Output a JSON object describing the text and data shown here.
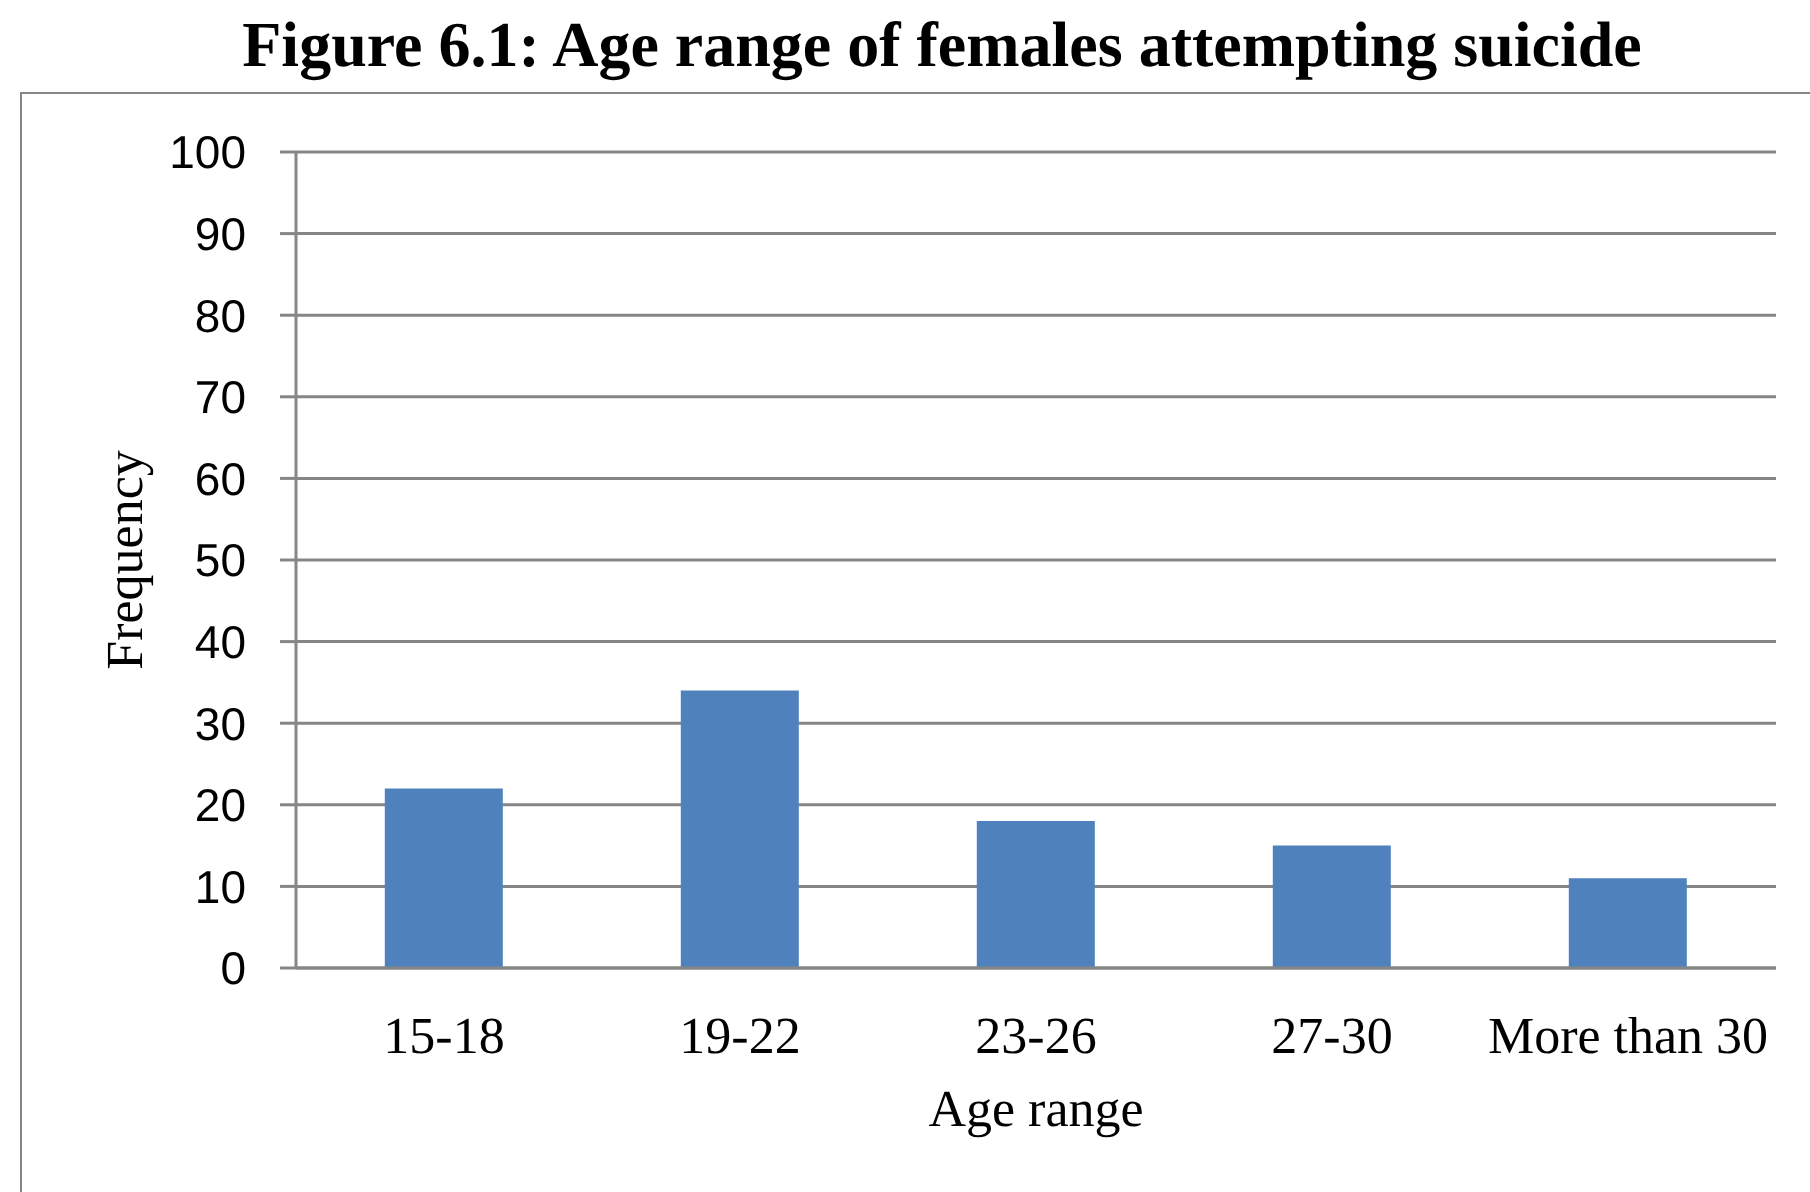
{
  "chart_data": {
    "type": "bar",
    "title": "Figure 6.1: Age range of females attempting suicide",
    "xlabel": "Age range",
    "ylabel": "Frequency",
    "categories": [
      "15-18",
      "19-22",
      "23-26",
      "27-30",
      "More than 30"
    ],
    "values": [
      22,
      34,
      18,
      15,
      11
    ],
    "color": "#4f81bd",
    "ylim": [
      0,
      100
    ],
    "yticks": [
      0,
      10,
      20,
      30,
      40,
      50,
      60,
      70,
      80,
      90,
      100
    ],
    "grid": "y"
  }
}
